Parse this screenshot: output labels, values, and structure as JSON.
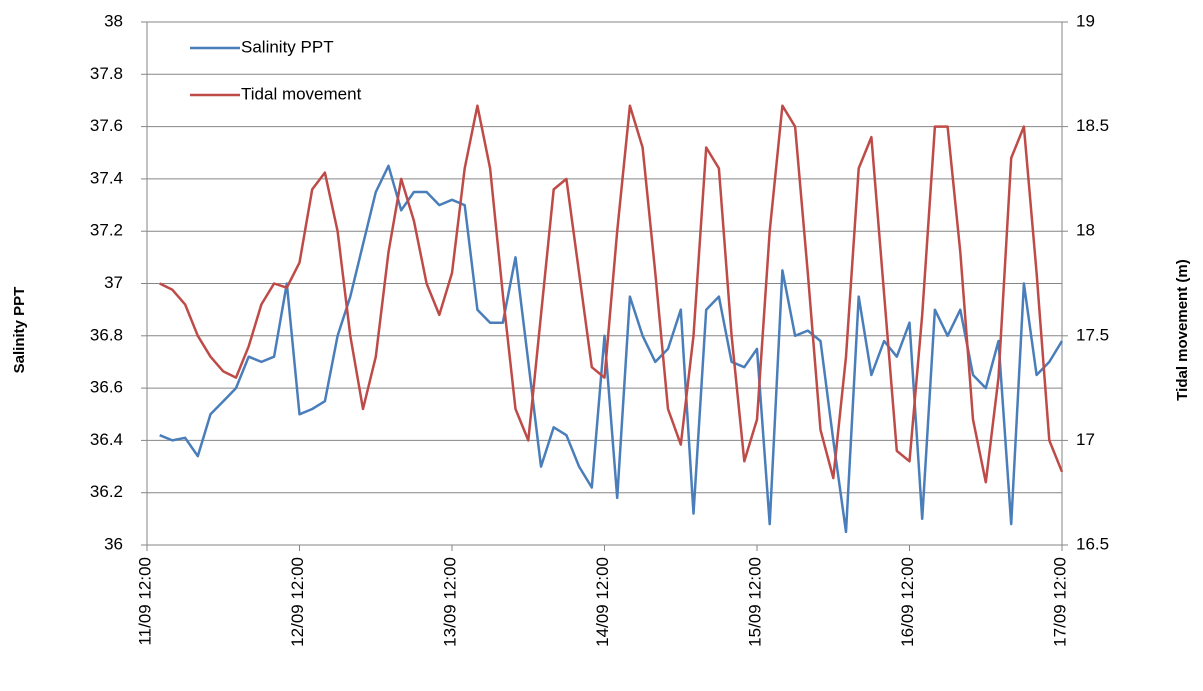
{
  "chart_data": {
    "type": "line",
    "y_label": "Salinity PPT",
    "y2_label": "Tidal movement (m)",
    "xlim": [
      "11/09 12:00",
      "17/09 12:00"
    ],
    "xticks": [
      "11/09 12:00",
      "12/09 12:00",
      "13/09 12:00",
      "14/09 12:00",
      "15/09 12:00",
      "16/09 12:00",
      "17/09 12:00"
    ],
    "ylim": [
      36,
      38
    ],
    "yticks": [
      36,
      36.2,
      36.4,
      36.6,
      36.8,
      37,
      37.2,
      37.4,
      37.6,
      37.8,
      38
    ],
    "y2lim": [
      16.5,
      19
    ],
    "y2ticks": [
      16.5,
      17,
      17.5,
      18,
      18.5,
      19
    ],
    "grid": true,
    "legend": "upper left",
    "x": [
      "11/09 14:00",
      "11/09 16:00",
      "11/09 18:00",
      "11/09 20:00",
      "11/09 22:00",
      "12/09 00:00",
      "12/09 02:00",
      "12/09 04:00",
      "12/09 06:00",
      "12/09 08:00",
      "12/09 10:00",
      "12/09 12:00",
      "12/09 14:00",
      "12/09 16:00",
      "12/09 18:00",
      "12/09 20:00",
      "12/09 22:00",
      "13/09 00:00",
      "13/09 02:00",
      "13/09 04:00",
      "13/09 06:00",
      "13/09 08:00",
      "13/09 10:00",
      "13/09 12:00",
      "13/09 14:00",
      "13/09 16:00",
      "13/09 18:00",
      "13/09 20:00",
      "13/09 22:00",
      "14/09 00:00",
      "14/09 02:00",
      "14/09 04:00",
      "14/09 06:00",
      "14/09 08:00",
      "14/09 10:00",
      "14/09 12:00",
      "14/09 14:00",
      "14/09 16:00",
      "14/09 18:00",
      "14/09 20:00",
      "14/09 22:00",
      "15/09 00:00",
      "15/09 02:00",
      "15/09 04:00",
      "15/09 06:00",
      "15/09 08:00",
      "15/09 10:00",
      "15/09 12:00",
      "15/09 14:00",
      "15/09 16:00",
      "15/09 18:00",
      "15/09 20:00",
      "15/09 22:00",
      "16/09 00:00",
      "16/09 02:00",
      "16/09 04:00",
      "16/09 06:00",
      "16/09 08:00",
      "16/09 10:00",
      "16/09 12:00",
      "16/09 14:00",
      "16/09 16:00",
      "16/09 18:00",
      "16/09 20:00",
      "16/09 22:00",
      "17/09 00:00",
      "17/09 02:00",
      "17/09 04:00",
      "17/09 06:00",
      "17/09 08:00",
      "17/09 10:00",
      "17/09 12:00"
    ],
    "series": [
      {
        "name": "Salinity PPT",
        "color": "#4a7ebb",
        "axis": "y",
        "values": [
          36.42,
          36.4,
          36.41,
          36.34,
          36.5,
          36.55,
          36.6,
          36.72,
          36.7,
          36.72,
          37.0,
          36.5,
          36.52,
          36.55,
          36.8,
          36.95,
          37.15,
          37.35,
          37.45,
          37.28,
          37.35,
          37.35,
          37.3,
          37.32,
          37.3,
          36.9,
          36.85,
          36.85,
          37.1,
          36.7,
          36.3,
          36.45,
          36.42,
          36.3,
          36.22,
          36.8,
          36.18,
          36.95,
          36.8,
          36.7,
          36.75,
          36.9,
          36.12,
          36.9,
          36.95,
          36.7,
          36.68,
          36.75,
          36.08,
          37.05,
          36.8,
          36.82,
          36.78,
          36.4,
          36.05,
          36.95,
          36.65,
          36.78,
          36.72,
          36.85,
          36.1,
          36.9,
          36.8,
          36.9,
          36.65,
          36.6,
          36.78,
          36.08,
          37.0,
          36.65,
          36.7,
          36.78
        ]
      },
      {
        "name": "Tidal movement",
        "color": "#be4b48",
        "axis": "y2",
        "values": [
          17.75,
          17.72,
          17.65,
          17.5,
          17.4,
          17.33,
          17.3,
          17.45,
          17.65,
          17.75,
          17.73,
          17.85,
          18.2,
          18.28,
          18.0,
          17.5,
          17.15,
          17.4,
          17.9,
          18.25,
          18.05,
          17.75,
          17.6,
          17.8,
          18.3,
          18.6,
          18.3,
          17.7,
          17.15,
          17.0,
          17.6,
          18.2,
          18.25,
          17.8,
          17.35,
          17.3,
          18.0,
          18.6,
          18.4,
          17.8,
          17.15,
          16.98,
          17.5,
          18.4,
          18.3,
          17.5,
          16.9,
          17.1,
          18.0,
          18.6,
          18.5,
          17.8,
          17.05,
          16.82,
          17.4,
          18.3,
          18.45,
          17.7,
          16.95,
          16.9,
          17.6,
          18.5,
          18.5,
          17.9,
          17.1,
          16.8,
          17.3,
          18.35,
          18.5,
          17.8,
          17.0,
          16.85
        ]
      }
    ]
  }
}
